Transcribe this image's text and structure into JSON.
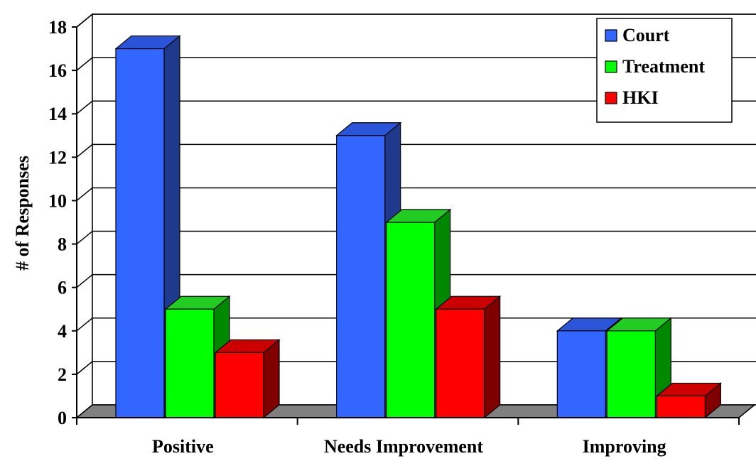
{
  "chart_data": {
    "type": "bar",
    "categories": [
      "Positive",
      "Needs Improvement",
      "Improving"
    ],
    "series": [
      {
        "name": "Court",
        "values": [
          17,
          13,
          4
        ],
        "color": "#3366ff",
        "side": "#1f3a8c",
        "top": "#2a55d9"
      },
      {
        "name": "Treatment",
        "values": [
          5,
          9,
          4
        ],
        "color": "#00ff00",
        "side": "#008800",
        "top": "#22cc22"
      },
      {
        "name": "HKI",
        "values": [
          3,
          5,
          1
        ],
        "color": "#ff0000",
        "side": "#800000",
        "top": "#cc0000"
      }
    ],
    "title": "",
    "xlabel": "",
    "ylabel": "# of Responses",
    "ylim": [
      0,
      18
    ],
    "yticks": [
      "0",
      "2",
      "4",
      "6",
      "8",
      "10",
      "12",
      "14",
      "16",
      "18"
    ],
    "grid": true,
    "legend_position": "top-right",
    "floor_color": "#808080"
  }
}
